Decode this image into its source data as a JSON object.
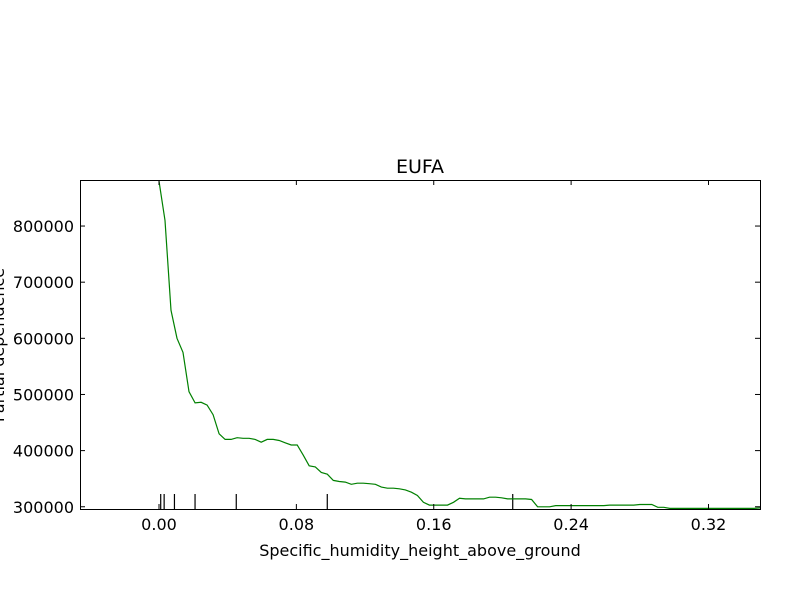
{
  "chart_data": {
    "type": "line",
    "title": "EUFA",
    "xlabel": "Specific_humidity_height_above_ground",
    "ylabel": "Partial dependence",
    "xlim": [
      -0.046,
      0.35
    ],
    "ylim": [
      296000,
      882000
    ],
    "x_ticks": [
      0.0,
      0.08,
      0.16,
      0.24,
      0.32
    ],
    "x_tick_labels": [
      "0.00",
      "0.08",
      "0.16",
      "0.24",
      "0.32"
    ],
    "y_ticks": [
      300000,
      400000,
      500000,
      600000,
      700000,
      800000
    ],
    "y_tick_labels": [
      "300000",
      "400000",
      "500000",
      "600000",
      "700000",
      "800000"
    ],
    "grid": false,
    "line_color": "#008000",
    "series": [
      {
        "x": [
          0.0,
          0.0035,
          0.007,
          0.0105,
          0.014,
          0.0175,
          0.021,
          0.0245,
          0.028,
          0.0315,
          0.035,
          0.0385,
          0.042,
          0.0455,
          0.049,
          0.0525,
          0.056,
          0.0595,
          0.063,
          0.0665,
          0.07,
          0.0735,
          0.077,
          0.0805,
          0.084,
          0.0875,
          0.091,
          0.0945,
          0.098,
          0.1015,
          0.105,
          0.1085,
          0.112,
          0.1155,
          0.119,
          0.1225,
          0.126,
          0.1295,
          0.133,
          0.1365,
          0.14,
          0.1435,
          0.147,
          0.1505,
          0.154,
          0.1575,
          0.161,
          0.1645,
          0.168,
          0.1715,
          0.175,
          0.1785,
          0.182,
          0.1855,
          0.189,
          0.1925,
          0.196,
          0.1995,
          0.203,
          0.2065,
          0.21,
          0.2135,
          0.217,
          0.2205,
          0.224,
          0.2275,
          0.231,
          0.2345,
          0.238,
          0.2415,
          0.245,
          0.2485,
          0.252,
          0.2555,
          0.259,
          0.2625,
          0.266,
          0.2695,
          0.273,
          0.2765,
          0.28,
          0.2835,
          0.287,
          0.2905,
          0.294,
          0.2975,
          0.301,
          0.3045,
          0.308,
          0.3115,
          0.315,
          0.3185,
          0.322,
          0.3255,
          0.329,
          0.3325,
          0.336,
          0.3395,
          0.343,
          0.3465,
          0.35
        ],
        "y": [
          880000,
          810000,
          650000,
          600000,
          575000,
          505000,
          485000,
          486000,
          481000,
          464000,
          430000,
          420000,
          420000,
          423000,
          422000,
          422000,
          420000,
          415000,
          420000,
          420000,
          418000,
          414000,
          410000,
          410000,
          392000,
          373000,
          371000,
          361000,
          358000,
          347000,
          345000,
          344000,
          340000,
          342000,
          342000,
          341000,
          340000,
          335000,
          333000,
          333000,
          332000,
          330000,
          326000,
          320000,
          308000,
          303000,
          303000,
          303000,
          303000,
          308000,
          315000,
          314000,
          314000,
          314000,
          314000,
          317000,
          317000,
          316000,
          314000,
          314000,
          314000,
          314000,
          313000,
          300000,
          300000,
          300000,
          302000,
          302000,
          302000,
          302000,
          302000,
          302000,
          302000,
          302000,
          302000,
          303000,
          303000,
          303000,
          303000,
          303000,
          304000,
          304000,
          304000,
          299000,
          299000,
          297000,
          297000,
          297000,
          297000,
          297000,
          297000,
          297000,
          297000,
          297000,
          297000,
          297000,
          297000,
          297000,
          297000,
          297000,
          298000
        ]
      }
    ],
    "rug_x": [
      0.001,
      0.003,
      0.009,
      0.021,
      0.045,
      0.098,
      0.206
    ]
  }
}
